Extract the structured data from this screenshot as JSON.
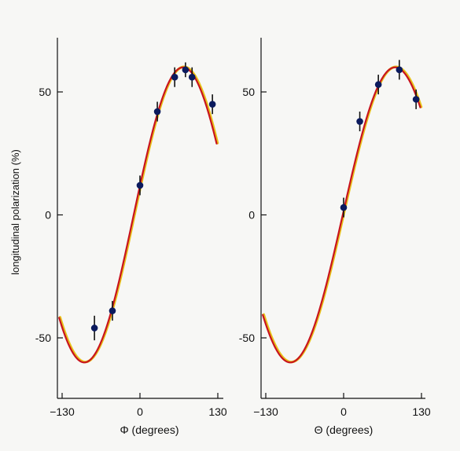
{
  "chart_data": [
    {
      "type": "scatter",
      "title": "",
      "xlabel": "Φ (degrees)",
      "ylabel": "longitudinal polarization (%)",
      "xlim": [
        -130,
        130
      ],
      "ylim": [
        -75,
        72
      ],
      "x_ticks": [
        -130,
        0,
        130
      ],
      "x_tick_labels": [
        "−130",
        "0",
        "130"
      ],
      "y_ticks": [
        50,
        0,
        -50
      ],
      "y_tick_labels": [
        "50",
        "0",
        "-50"
      ],
      "grid": false,
      "series": [
        {
          "points": [
            {
              "x": -76,
              "y": -46,
              "err": 5
            },
            {
              "x": -46,
              "y": -39,
              "err": 4
            },
            {
              "x": 0,
              "y": 12,
              "err": 4
            },
            {
              "x": 29,
              "y": 42,
              "err": 4
            },
            {
              "x": 58,
              "y": 56,
              "err": 4
            },
            {
              "x": 76,
              "y": 59,
              "err": 3
            },
            {
              "x": 87,
              "y": 56,
              "err": 4
            },
            {
              "x": 121,
              "y": 45,
              "err": 4
            }
          ]
        }
      ],
      "fit": {
        "amplitude": 60,
        "center_deg": 72,
        "period_deg": 330,
        "x_range": [
          -135,
          128
        ]
      }
    },
    {
      "type": "scatter",
      "title": "",
      "xlabel": "Θ (degrees)",
      "ylabel": "",
      "xlim": [
        -130,
        130
      ],
      "ylim": [
        -75,
        72
      ],
      "x_ticks": [
        -130,
        0,
        130
      ],
      "x_tick_labels": [
        "−130",
        "0",
        "130"
      ],
      "y_ticks": [
        50,
        0,
        -50
      ],
      "y_tick_labels": [
        "50",
        "0",
        "-50"
      ],
      "grid": false,
      "series": [
        {
          "points": [
            {
              "x": 0,
              "y": 3,
              "err": 4
            },
            {
              "x": 27,
              "y": 38,
              "err": 4
            },
            {
              "x": 58,
              "y": 53,
              "err": 4
            },
            {
              "x": 93,
              "y": 59,
              "err": 4
            },
            {
              "x": 121,
              "y": 47,
              "err": 4
            }
          ]
        }
      ],
      "fit": {
        "amplitude": 60,
        "center_deg": 86,
        "period_deg": 350,
        "x_range": [
          -135,
          128
        ]
      }
    }
  ]
}
